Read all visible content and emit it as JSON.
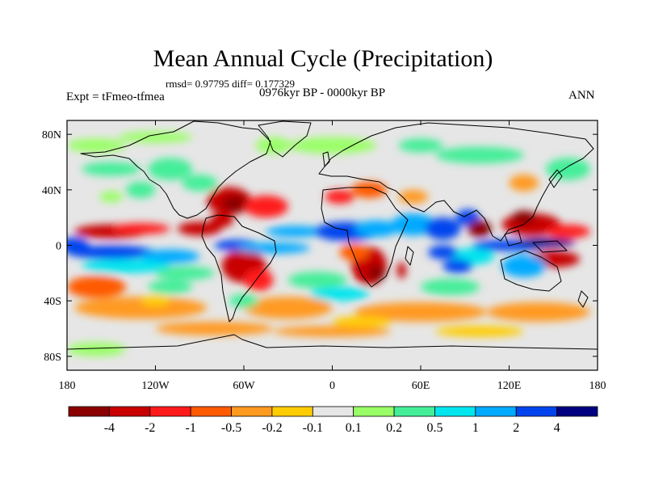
{
  "figure": {
    "title": "Mean Annual Cycle (Precipitation)",
    "stats": "rmsd= 0.97795 diff= 0.177329",
    "period": "0976kyr BP - 0000kyr BP",
    "experiment": "Expt = tFmeo-tfmea",
    "season": "ANN"
  },
  "axes": {
    "lat_labels": [
      "80N",
      "40N",
      "0",
      "40S",
      "80S"
    ],
    "lon_labels": [
      "180",
      "120W",
      "60W",
      "0",
      "60E",
      "120E",
      "180"
    ],
    "lat_values": [
      80,
      40,
      0,
      -40,
      -80
    ],
    "lon_values": [
      -180,
      -120,
      -60,
      0,
      60,
      120,
      180
    ],
    "lat_range": [
      -90,
      90
    ],
    "lon_range": [
      -180,
      180
    ]
  },
  "colorbar": {
    "colors": [
      "#8b0000",
      "#c80000",
      "#ff1a1a",
      "#ff5a00",
      "#ff9a20",
      "#ffcc00",
      "#e6e6e6",
      "#99ff66",
      "#44ee99",
      "#00e5ee",
      "#00aaff",
      "#0044ee",
      "#000080"
    ],
    "labels": [
      "-4",
      "-2",
      "-1",
      "-0.5",
      "-0.2",
      "-0.1",
      "0.1",
      "0.2",
      "0.5",
      "1",
      "2",
      "4"
    ]
  },
  "field_anomalies": [
    {
      "lon": -150,
      "lat": 10,
      "rlon": 25,
      "rlat": 5,
      "level": 1
    },
    {
      "lon": -130,
      "lat": 12,
      "rlon": 20,
      "rlat": 4,
      "level": 2
    },
    {
      "lon": -90,
      "lat": 12,
      "rlon": 15,
      "rlat": 5,
      "level": 1
    },
    {
      "lon": -150,
      "lat": -5,
      "rlon": 30,
      "rlat": 5,
      "level": 11
    },
    {
      "lon": -110,
      "lat": -8,
      "rlon": 20,
      "rlat": 5,
      "level": 10
    },
    {
      "lon": -175,
      "lat": 0,
      "rlon": 10,
      "rlat": 6,
      "level": 11
    },
    {
      "lon": -140,
      "lat": -15,
      "rlon": 30,
      "rlat": 5,
      "level": 9
    },
    {
      "lon": -70,
      "lat": 32,
      "rlon": 15,
      "rlat": 10,
      "level": 1
    },
    {
      "lon": -65,
      "lat": 30,
      "rlon": 10,
      "rlat": 6,
      "level": 0
    },
    {
      "lon": -45,
      "lat": 28,
      "rlon": 15,
      "rlat": 8,
      "level": 2
    },
    {
      "lon": -75,
      "lat": 18,
      "rlon": 8,
      "rlat": 5,
      "level": 1
    },
    {
      "lon": -60,
      "lat": -15,
      "rlon": 15,
      "rlat": 12,
      "level": 1
    },
    {
      "lon": -50,
      "lat": -25,
      "rlon": 10,
      "rlat": 8,
      "level": 2
    },
    {
      "lon": -65,
      "lat": 0,
      "rlon": 15,
      "rlat": 4,
      "level": 11
    },
    {
      "lon": -40,
      "lat": -2,
      "rlon": 25,
      "rlat": 4,
      "level": 10
    },
    {
      "lon": -25,
      "lat": 10,
      "rlon": 20,
      "rlat": 4,
      "level": 10
    },
    {
      "lon": 25,
      "lat": -15,
      "rlon": 12,
      "rlat": 14,
      "level": 1
    },
    {
      "lon": 30,
      "lat": -20,
      "rlon": 6,
      "rlat": 6,
      "level": 0
    },
    {
      "lon": 47,
      "lat": -18,
      "rlon": 3,
      "rlat": 6,
      "level": 1
    },
    {
      "lon": 15,
      "lat": -5,
      "rlon": 10,
      "rlat": 6,
      "level": 3
    },
    {
      "lon": 10,
      "lat": 10,
      "rlon": 22,
      "rlat": 7,
      "level": 11
    },
    {
      "lon": 30,
      "lat": 12,
      "rlon": 15,
      "rlat": 6,
      "level": 10
    },
    {
      "lon": 55,
      "lat": 15,
      "rlon": 15,
      "rlat": 8,
      "level": 10
    },
    {
      "lon": 75,
      "lat": 12,
      "rlon": 12,
      "rlat": 8,
      "level": 11
    },
    {
      "lon": 92,
      "lat": 20,
      "rlon": 8,
      "rlat": 6,
      "level": 11
    },
    {
      "lon": 100,
      "lat": 12,
      "rlon": 8,
      "rlat": 6,
      "level": 0
    },
    {
      "lon": 135,
      "lat": 15,
      "rlon": 20,
      "rlat": 8,
      "level": 1
    },
    {
      "lon": 130,
      "lat": 20,
      "rlon": 8,
      "rlat": 5,
      "level": 0
    },
    {
      "lon": 160,
      "lat": 10,
      "rlon": 15,
      "rlat": 5,
      "level": 2
    },
    {
      "lon": 120,
      "lat": 0,
      "rlon": 25,
      "rlat": 4,
      "level": 11
    },
    {
      "lon": 145,
      "lat": 2,
      "rlon": 20,
      "rlat": 3,
      "level": 12
    },
    {
      "lon": 150,
      "lat": -10,
      "rlon": 18,
      "rlat": 6,
      "level": 1
    },
    {
      "lon": 130,
      "lat": -15,
      "rlon": 15,
      "rlat": 8,
      "level": 10
    },
    {
      "lon": 95,
      "lat": -8,
      "rlon": 15,
      "rlat": 6,
      "level": 9
    },
    {
      "lon": 75,
      "lat": -5,
      "rlon": 10,
      "rlat": 5,
      "level": 11
    },
    {
      "lon": 85,
      "lat": -15,
      "rlon": 10,
      "rlat": 5,
      "level": 11
    },
    {
      "lon": -110,
      "lat": 55,
      "rlon": 15,
      "rlat": 8,
      "level": 8
    },
    {
      "lon": -150,
      "lat": 55,
      "rlon": 20,
      "rlat": 5,
      "level": 8
    },
    {
      "lon": -160,
      "lat": 72,
      "rlon": 20,
      "rlat": 5,
      "level": 7
    },
    {
      "lon": 0,
      "lat": 72,
      "rlon": 30,
      "rlat": 6,
      "level": 7
    },
    {
      "lon": 100,
      "lat": 65,
      "rlon": 30,
      "rlat": 6,
      "level": 8
    },
    {
      "lon": -40,
      "lat": 72,
      "rlon": 12,
      "rlat": 6,
      "level": 7
    },
    {
      "lon": 60,
      "lat": 72,
      "rlon": 15,
      "rlat": 5,
      "level": 8
    },
    {
      "lon": -120,
      "lat": 78,
      "rlon": 25,
      "rlat": 4,
      "level": 7
    },
    {
      "lon": 160,
      "lat": 55,
      "rlon": 15,
      "rlat": 8,
      "level": 8
    },
    {
      "lon": 25,
      "lat": 40,
      "rlon": 12,
      "rlat": 6,
      "level": 3
    },
    {
      "lon": 5,
      "lat": 35,
      "rlon": 10,
      "rlat": 5,
      "level": 2
    },
    {
      "lon": 55,
      "lat": 35,
      "rlon": 10,
      "rlat": 5,
      "level": 4
    },
    {
      "lon": -130,
      "lat": 40,
      "rlon": 10,
      "rlat": 6,
      "level": 8
    },
    {
      "lon": -150,
      "lat": 35,
      "rlon": 8,
      "rlat": 4,
      "level": 7
    },
    {
      "lon": -90,
      "lat": 45,
      "rlon": 12,
      "rlat": 6,
      "level": 8
    },
    {
      "lon": 130,
      "lat": 45,
      "rlon": 10,
      "rlat": 6,
      "level": 4
    },
    {
      "lon": -130,
      "lat": -45,
      "rlon": 45,
      "rlat": 8,
      "level": 4
    },
    {
      "lon": -30,
      "lat": -45,
      "rlon": 30,
      "rlat": 8,
      "level": 4
    },
    {
      "lon": 60,
      "lat": -48,
      "rlon": 45,
      "rlat": 7,
      "level": 4
    },
    {
      "lon": 140,
      "lat": -48,
      "rlon": 35,
      "rlat": 7,
      "level": 4
    },
    {
      "lon": -160,
      "lat": -30,
      "rlon": 20,
      "rlat": 8,
      "level": 3
    },
    {
      "lon": -80,
      "lat": -60,
      "rlon": 40,
      "rlat": 5,
      "level": 4
    },
    {
      "lon": 0,
      "lat": -62,
      "rlon": 40,
      "rlat": 4,
      "level": 4
    },
    {
      "lon": 100,
      "lat": -62,
      "rlon": 30,
      "rlat": 4,
      "level": 5
    },
    {
      "lon": -110,
      "lat": -30,
      "rlon": 15,
      "rlat": 5,
      "level": 8
    },
    {
      "lon": -100,
      "lat": -20,
      "rlon": 20,
      "rlat": 5,
      "level": 8
    },
    {
      "lon": -10,
      "lat": -25,
      "rlon": 20,
      "rlat": 6,
      "level": 8
    },
    {
      "lon": 5,
      "lat": -35,
      "rlon": 20,
      "rlat": 5,
      "level": 9
    },
    {
      "lon": 80,
      "lat": -30,
      "rlon": 20,
      "rlat": 6,
      "level": 8
    },
    {
      "lon": -60,
      "lat": -40,
      "rlon": 10,
      "rlat": 5,
      "level": 8
    },
    {
      "lon": -160,
      "lat": -75,
      "rlon": 20,
      "rlat": 5,
      "level": 7
    },
    {
      "lon": -120,
      "lat": -40,
      "rlon": 10,
      "rlat": 4,
      "level": 5
    },
    {
      "lon": 20,
      "lat": -55,
      "rlon": 20,
      "rlat": 4,
      "level": 5
    }
  ]
}
